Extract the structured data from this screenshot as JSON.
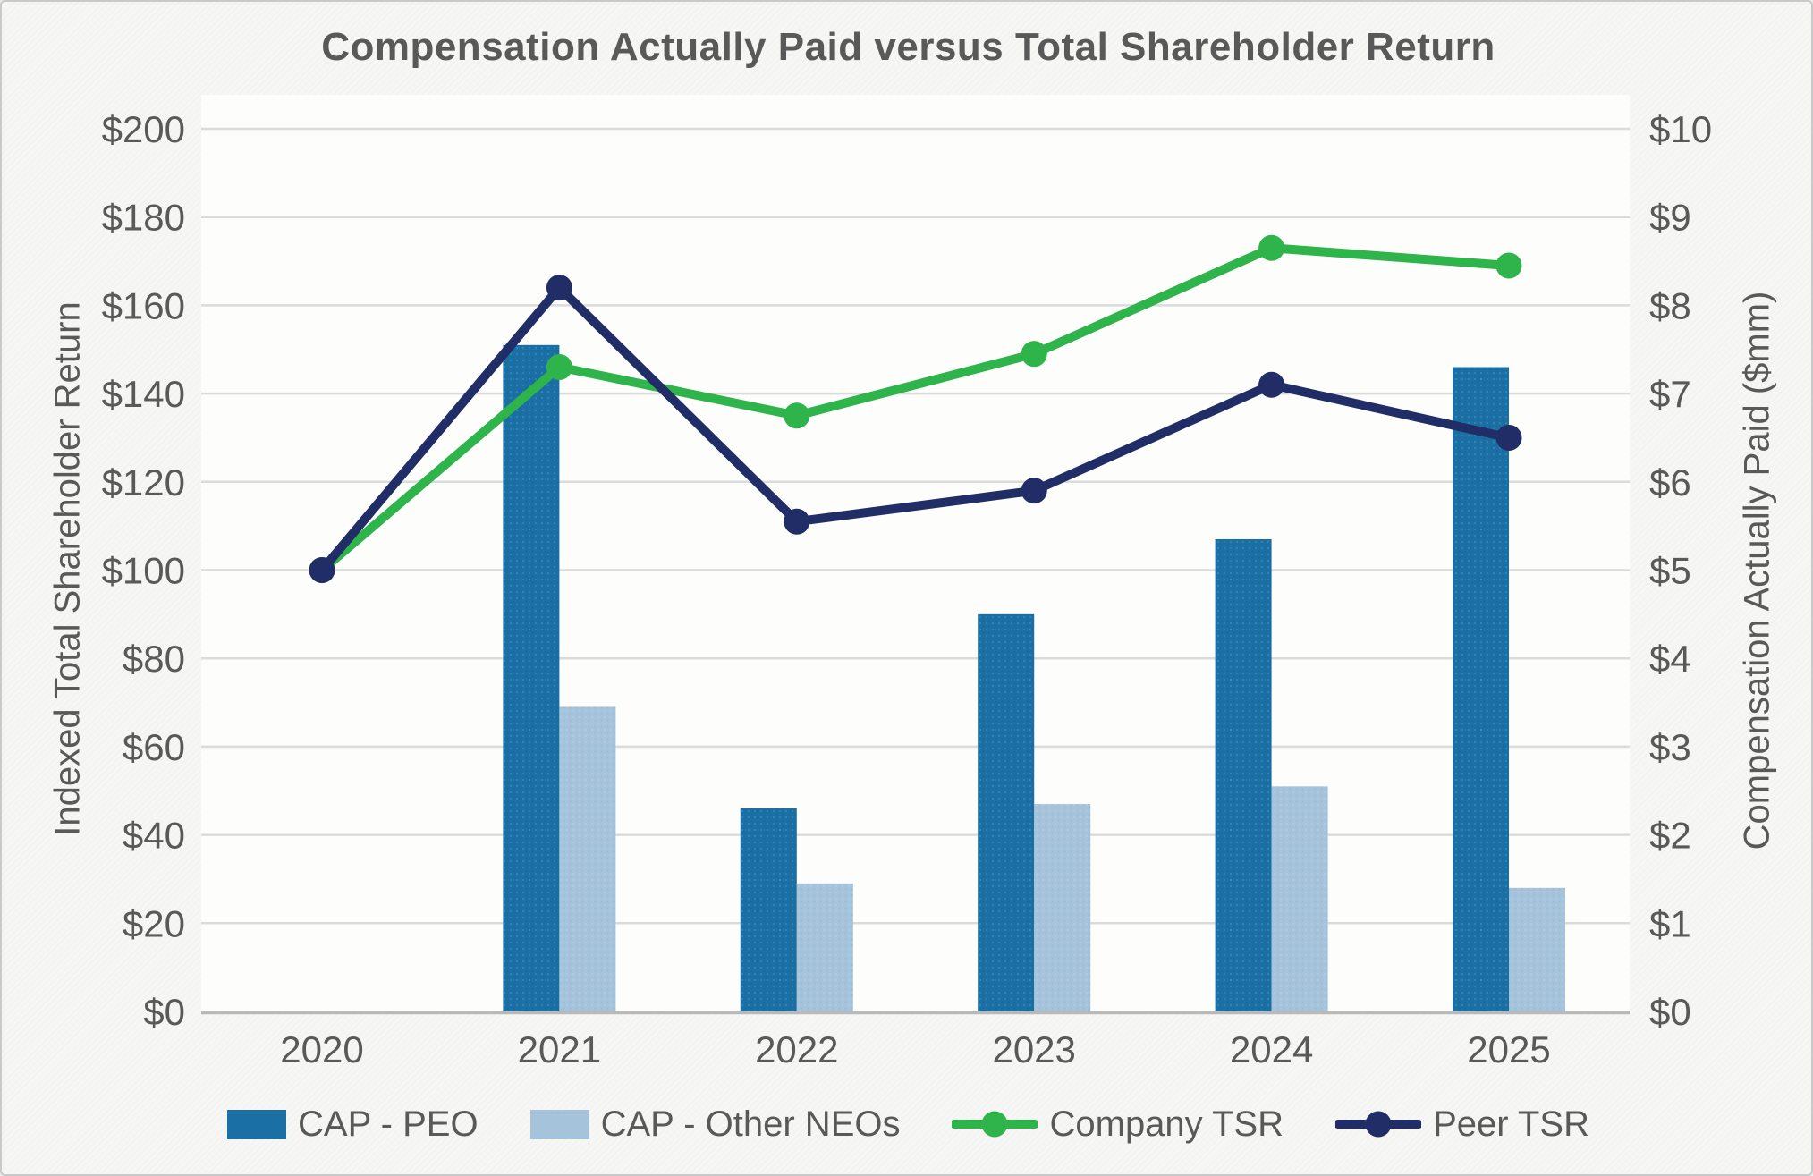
{
  "title": "Compensation Actually Paid versus Total Shareholder Return",
  "left_axis": {
    "title": "Indexed Total Shareholder Return",
    "tick_values": [
      0,
      20,
      40,
      60,
      80,
      100,
      120,
      140,
      160,
      180,
      200
    ],
    "tick_labels": [
      "$0",
      "$20",
      "$40",
      "$60",
      "$80",
      "$100",
      "$120",
      "$140",
      "$160",
      "$180",
      "$200"
    ]
  },
  "right_axis": {
    "title": "Compensation Actually Paid ($mm)",
    "tick_values": [
      0,
      1,
      2,
      3,
      4,
      5,
      6,
      7,
      8,
      9,
      10
    ],
    "tick_labels": [
      "$0",
      "$1",
      "$2",
      "$3",
      "$4",
      "$5",
      "$6",
      "$7",
      "$8",
      "$9",
      "$10"
    ]
  },
  "colors": {
    "cap_peo": "#1a6fa4",
    "cap_other_neos": "#a5c4db",
    "company_tsr": "#2eb44b",
    "peer_tsr": "#202d66",
    "text": "#595959",
    "gridline": "#dbdbdb",
    "axis_line": "#b9b9b9",
    "plot_background": "#fdfdfb"
  },
  "legend": [
    {
      "label": "CAP - PEO",
      "type": "bar",
      "color": "#1a6fa4"
    },
    {
      "label": "CAP - Other NEOs",
      "type": "bar",
      "color": "#a5c4db"
    },
    {
      "label": "Company TSR",
      "type": "line",
      "color": "#2eb44b"
    },
    {
      "label": "Peer TSR",
      "type": "line",
      "color": "#202d66"
    }
  ],
  "chart_data": {
    "type": "combo",
    "categories": [
      "2020",
      "2021",
      "2022",
      "2023",
      "2024",
      "2025"
    ],
    "series": [
      {
        "name": "CAP - PEO",
        "type": "bar",
        "axis": "right",
        "color": "#1a6fa4",
        "values": [
          null,
          7.55,
          2.3,
          4.5,
          5.35,
          7.3
        ]
      },
      {
        "name": "CAP - Other NEOs",
        "type": "bar",
        "axis": "right",
        "color": "#a5c4db",
        "values": [
          null,
          3.45,
          1.45,
          2.35,
          2.55,
          1.4
        ]
      },
      {
        "name": "Company TSR",
        "type": "line",
        "axis": "left",
        "color": "#2eb44b",
        "values": [
          100,
          146,
          135,
          149,
          173,
          169
        ]
      },
      {
        "name": "Peer TSR",
        "type": "line",
        "axis": "left",
        "color": "#202d66",
        "values": [
          100,
          164,
          111,
          118,
          142,
          130
        ]
      }
    ],
    "title": "Compensation Actually Paid versus Total Shareholder Return",
    "xlabel": "",
    "ylabel_left": "Indexed Total Shareholder Return",
    "ylabel_right": "Compensation Actually Paid ($mm)",
    "left_ylim": [
      0,
      200
    ],
    "right_ylim": [
      0,
      10
    ],
    "grid": true,
    "legend_position": "bottom"
  }
}
